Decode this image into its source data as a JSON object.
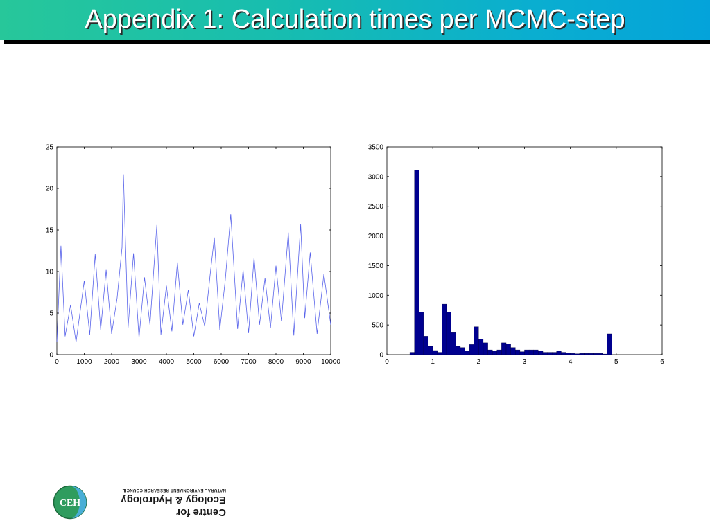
{
  "slide": {
    "title": "Appendix 1: Calculation times per MCMC-step"
  },
  "logo": {
    "acronym": "CEH",
    "line1": "Centre for",
    "line2": "Ecology & Hydrology",
    "line3": "NATURAL ENVIRONMENT RESEARCH COUNCIL"
  },
  "colors": {
    "line": "#3a46e6",
    "bar": "#00008f"
  },
  "chart_data": [
    {
      "type": "line",
      "title": "",
      "xlabel": "",
      "ylabel": "",
      "xlim": [
        0,
        10000
      ],
      "ylim": [
        0,
        25
      ],
      "xticks": [
        0,
        1000,
        2000,
        3000,
        4000,
        5000,
        6000,
        7000,
        8000,
        9000,
        10000
      ],
      "yticks": [
        0,
        5,
        10,
        15,
        20,
        25
      ],
      "grid": false,
      "series": [
        {
          "x": [
            0,
            150,
            300,
            500,
            700,
            1000,
            1200,
            1400,
            1600,
            1800,
            2000,
            2200,
            2380,
            2430,
            2600,
            2800,
            3000,
            3200,
            3400,
            3650,
            3800,
            4000,
            4200,
            4400,
            4600,
            4800,
            5000,
            5200,
            5400,
            5600,
            5750,
            5950,
            6150,
            6350,
            6600,
            6800,
            7000,
            7200,
            7400,
            7600,
            7800,
            8000,
            8200,
            8450,
            8650,
            8900,
            9050,
            9250,
            9500,
            9750,
            10000
          ],
          "y": [
            1.5,
            13.1,
            2.2,
            6.0,
            1.5,
            8.9,
            2.4,
            12.1,
            3.0,
            10.2,
            2.5,
            6.8,
            12.9,
            21.7,
            3.2,
            12.2,
            2.0,
            9.3,
            3.6,
            15.6,
            2.4,
            8.3,
            2.8,
            11.1,
            3.6,
            7.8,
            2.2,
            6.2,
            3.4,
            9.7,
            14.1,
            3.0,
            9.0,
            16.9,
            3.1,
            10.2,
            2.6,
            11.7,
            3.6,
            9.2,
            3.2,
            10.7,
            4.0,
            14.7,
            2.3,
            15.7,
            4.4,
            12.3,
            2.5,
            9.7,
            3.6
          ]
        }
      ]
    },
    {
      "type": "bar",
      "title": "",
      "xlabel": "",
      "ylabel": "",
      "xlim": [
        0,
        6
      ],
      "ylim": [
        0,
        3500
      ],
      "xticks": [
        0,
        1,
        2,
        3,
        4,
        5,
        6
      ],
      "yticks": [
        0,
        500,
        1000,
        1500,
        2000,
        2500,
        3000,
        3500
      ],
      "grid": false,
      "bin_width": 0.1,
      "bin_centers": [
        0.55,
        0.65,
        0.75,
        0.85,
        0.95,
        1.05,
        1.15,
        1.25,
        1.35,
        1.45,
        1.55,
        1.65,
        1.75,
        1.85,
        1.95,
        2.05,
        2.15,
        2.25,
        2.35,
        2.45,
        2.55,
        2.65,
        2.75,
        2.85,
        2.95,
        3.05,
        3.15,
        3.25,
        3.35,
        3.45,
        3.55,
        3.65,
        3.75,
        3.85,
        3.95,
        4.05,
        4.15,
        4.25,
        4.35,
        4.45,
        4.55,
        4.65,
        4.75,
        4.85,
        4.95,
        5.05
      ],
      "values": [
        40,
        3110,
        720,
        310,
        140,
        70,
        40,
        850,
        720,
        370,
        140,
        120,
        60,
        170,
        470,
        260,
        200,
        80,
        60,
        80,
        200,
        180,
        120,
        80,
        50,
        80,
        80,
        80,
        60,
        40,
        40,
        40,
        60,
        40,
        30,
        20,
        15,
        20,
        20,
        20,
        20,
        20,
        10,
        350,
        0,
        0
      ]
    }
  ]
}
